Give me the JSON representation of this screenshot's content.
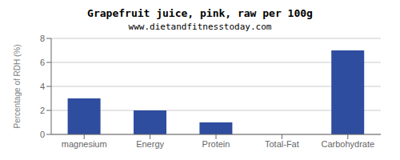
{
  "chart_data": {
    "type": "bar",
    "title": "Grapefruit juice, pink, raw per 100g",
    "subtitle": "www.dietandfitnesstoday.com",
    "categories": [
      "magnesium",
      "Energy",
      "Protein",
      "Total-Fat",
      "Carbohydrate"
    ],
    "values": [
      3.0,
      2.0,
      1.0,
      0.0,
      7.0
    ],
    "color": "#2e4d9f",
    "ylabel": "Percentage of RDH (%)",
    "ylim": [
      0,
      8
    ],
    "yticks": [
      0,
      2,
      4,
      6,
      8
    ],
    "grid": true
  }
}
